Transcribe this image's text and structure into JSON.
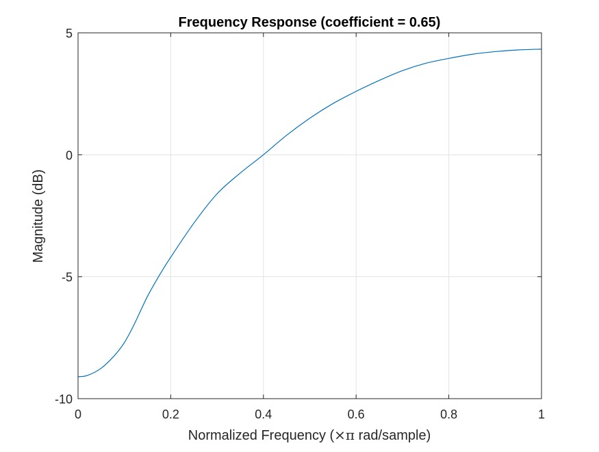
{
  "chart_data": {
    "type": "line",
    "title": "Frequency Response (coefficient = 0.65)",
    "xlabel_prefix": "Normalized Frequency (",
    "xlabel_symbol": "×π",
    "xlabel_suffix": " rad/sample)",
    "ylabel": "Magnitude (dB)",
    "xlim": [
      0,
      1
    ],
    "ylim": [
      -10,
      5
    ],
    "xticks": [
      0,
      0.2,
      0.4,
      0.6,
      0.8,
      1
    ],
    "xtick_labels": [
      "0",
      "0.2",
      "0.4",
      "0.6",
      "0.8",
      "1"
    ],
    "yticks": [
      -10,
      -5,
      0,
      5
    ],
    "ytick_labels": [
      "-10",
      "-5",
      "0",
      "5"
    ],
    "grid": true,
    "series": [
      {
        "color": "#0072BD",
        "x": [
          0,
          0.02,
          0.05,
          0.08,
          0.1,
          0.12,
          0.15,
          0.18,
          0.2,
          0.25,
          0.3,
          0.35,
          0.4,
          0.45,
          0.5,
          0.55,
          0.6,
          0.65,
          0.7,
          0.75,
          0.8,
          0.85,
          0.9,
          0.95,
          1.0
        ],
        "y": [
          -9.1,
          -9.05,
          -8.75,
          -8.2,
          -7.7,
          -7.0,
          -5.8,
          -4.8,
          -4.2,
          -2.8,
          -1.6,
          -0.75,
          0.0,
          0.8,
          1.5,
          2.1,
          2.6,
          3.05,
          3.45,
          3.75,
          3.95,
          4.12,
          4.23,
          4.3,
          4.33
        ]
      }
    ]
  }
}
